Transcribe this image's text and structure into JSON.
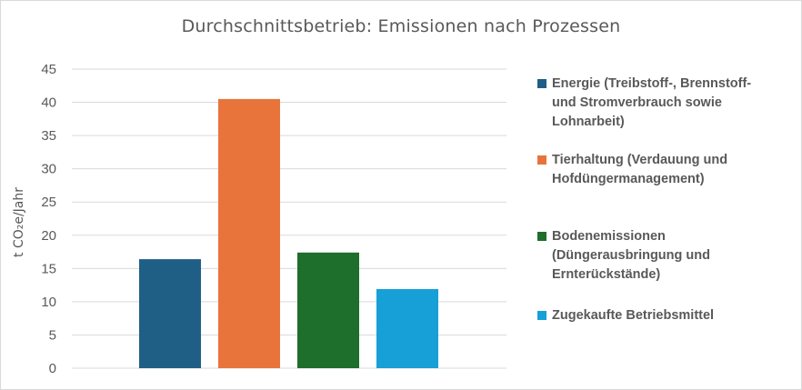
{
  "chart_data": {
    "type": "bar",
    "title": "Durchschnittsbetrieb: Emissionen nach Prozessen",
    "ylabel": "t CO₂e/Jahr",
    "xlabel": "",
    "ylim": [
      0,
      45
    ],
    "yticks": [
      "0",
      "5",
      "10",
      "15",
      "20",
      "25",
      "30",
      "35",
      "40",
      "45"
    ],
    "grid": true,
    "legend_position": "right",
    "series": [
      {
        "name": "Energie (Treibstoff-, Brennstoff- und Stromverbrauch sowie Lohnarbeit)",
        "value": 16.4,
        "color": "#1f5f86"
      },
      {
        "name": "Tierhaltung (Verdauung und Hofdüngermanagement)",
        "value": 40.5,
        "color": "#e8743b"
      },
      {
        "name": "Bodenemissionen (Düngerausbringung und Ernterückstände)",
        "value": 17.4,
        "color": "#1e6e2c"
      },
      {
        "name": "Zugekaufte Betriebsmittel",
        "value": 11.9,
        "color": "#179fd8"
      }
    ]
  }
}
